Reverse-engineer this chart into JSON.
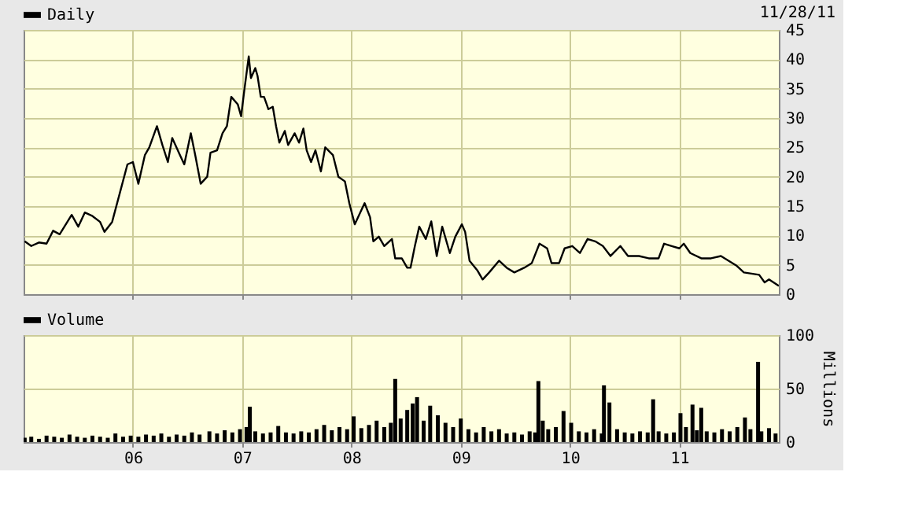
{
  "chart_data": [
    {
      "type": "line",
      "legend": "top left",
      "grid": true,
      "tick_labels": "y",
      "annotations": [
        "11/28/11"
      ],
      "xlim": [
        2005.0,
        2011.91
      ],
      "ylim": [
        0,
        45
      ],
      "yticks": [
        0,
        5,
        10,
        15,
        20,
        25,
        30,
        35,
        40,
        45
      ],
      "xticks": [
        {
          "value": 2006,
          "label": null
        },
        {
          "value": 2007,
          "label": null
        },
        {
          "value": 2008,
          "label": null
        },
        {
          "value": 2009,
          "label": null
        },
        {
          "value": 2010,
          "label": null
        },
        {
          "value": 2011,
          "label": null
        }
      ],
      "series": [
        {
          "name": "Daily",
          "color": "#000000",
          "x": [
            2005.01,
            2005.07,
            2005.14,
            2005.21,
            2005.27,
            2005.33,
            2005.44,
            2005.5,
            2005.56,
            2005.63,
            2005.7,
            2005.74,
            2005.81,
            2005.88,
            2005.95,
            2006.0,
            2006.05,
            2006.11,
            2006.15,
            2006.22,
            2006.27,
            2006.32,
            2006.36,
            2006.43,
            2006.47,
            2006.53,
            2006.57,
            2006.62,
            2006.68,
            2006.71,
            2006.77,
            2006.82,
            2006.86,
            2006.9,
            2006.96,
            2006.99,
            2007.02,
            2007.06,
            2007.08,
            2007.12,
            2007.14,
            2007.17,
            2007.2,
            2007.24,
            2007.28,
            2007.31,
            2007.34,
            2007.39,
            2007.42,
            2007.48,
            2007.52,
            2007.56,
            2007.59,
            2007.63,
            2007.67,
            2007.72,
            2007.76,
            2007.83,
            2007.88,
            2007.94,
            2007.98,
            2008.03,
            2008.09,
            2008.12,
            2008.17,
            2008.2,
            2008.25,
            2008.3,
            2008.37,
            2008.4,
            2008.46,
            2008.51,
            2008.54,
            2008.58,
            2008.62,
            2008.68,
            2008.73,
            2008.78,
            2008.83,
            2008.9,
            2008.95,
            2009.01,
            2009.04,
            2009.08,
            2009.15,
            2009.2,
            2009.26,
            2009.35,
            2009.42,
            2009.49,
            2009.58,
            2009.65,
            2009.72,
            2009.79,
            2009.83,
            2009.9,
            2009.95,
            2010.02,
            2010.09,
            2010.16,
            2010.23,
            2010.3,
            2010.37,
            2010.46,
            2010.53,
            2010.63,
            2010.72,
            2010.81,
            2010.86,
            2010.93,
            2011.0,
            2011.04,
            2011.1,
            2011.2,
            2011.29,
            2011.38,
            2011.45,
            2011.52,
            2011.59,
            2011.73,
            2011.78,
            2011.82,
            2011.91
          ],
          "values": [
            9.0,
            8.2,
            8.8,
            8.6,
            10.8,
            10.2,
            13.5,
            11.5,
            13.9,
            13.3,
            12.3,
            10.6,
            12.3,
            17.2,
            22.1,
            22.5,
            18.8,
            23.7,
            25.0,
            28.6,
            25.4,
            22.5,
            26.6,
            23.7,
            22.1,
            27.4,
            23.7,
            18.8,
            20.0,
            24.1,
            24.5,
            27.4,
            28.6,
            33.6,
            32.3,
            30.3,
            34.8,
            40.5,
            36.8,
            38.5,
            37.2,
            33.6,
            33.6,
            31.5,
            31.9,
            28.6,
            25.8,
            27.8,
            25.4,
            27.4,
            25.8,
            28.2,
            24.5,
            22.5,
            24.5,
            20.9,
            25.0,
            23.7,
            20.0,
            19.2,
            15.5,
            11.9,
            14.3,
            15.5,
            13.1,
            9.0,
            9.8,
            8.2,
            9.4,
            6.1,
            6.1,
            4.5,
            4.5,
            8.2,
            11.5,
            9.4,
            12.4,
            6.5,
            11.5,
            7.0,
            9.8,
            11.9,
            10.6,
            5.7,
            4.1,
            2.5,
            3.7,
            5.7,
            4.5,
            3.7,
            4.5,
            5.3,
            8.6,
            7.8,
            5.3,
            5.3,
            7.8,
            8.2,
            7.0,
            9.4,
            9.0,
            8.2,
            6.5,
            8.2,
            6.5,
            6.5,
            6.1,
            6.1,
            8.6,
            8.2,
            7.8,
            8.6,
            7.0,
            6.1,
            6.1,
            6.5,
            5.7,
            4.9,
            3.7,
            3.3,
            2.0,
            2.5,
            1.4
          ]
        }
      ]
    },
    {
      "type": "bar",
      "legend": "top left",
      "grid": true,
      "ylabel": "Millions",
      "xlim": [
        2005.0,
        2011.91
      ],
      "ylim": [
        0,
        100
      ],
      "yticks": [
        0,
        50,
        100
      ],
      "xticks": [
        {
          "value": 2006,
          "label": "06"
        },
        {
          "value": 2007,
          "label": "07"
        },
        {
          "value": 2008,
          "label": "08"
        },
        {
          "value": 2009,
          "label": "09"
        },
        {
          "value": 2010,
          "label": "10"
        },
        {
          "value": 2011,
          "label": "11"
        }
      ],
      "series": [
        {
          "name": "Volume",
          "color": "#000000",
          "x": [
            2005.01,
            2005.07,
            2005.14,
            2005.21,
            2005.28,
            2005.35,
            2005.42,
            2005.49,
            2005.56,
            2005.63,
            2005.7,
            2005.77,
            2005.84,
            2005.91,
            2005.98,
            2006.05,
            2006.12,
            2006.19,
            2006.26,
            2006.33,
            2006.4,
            2006.47,
            2006.54,
            2006.61,
            2006.7,
            2006.77,
            2006.84,
            2006.91,
            2006.98,
            2007.04,
            2007.07,
            2007.12,
            2007.19,
            2007.26,
            2007.33,
            2007.4,
            2007.47,
            2007.54,
            2007.61,
            2007.68,
            2007.75,
            2007.82,
            2007.89,
            2007.96,
            2008.02,
            2008.09,
            2008.16,
            2008.23,
            2008.3,
            2008.36,
            2008.4,
            2008.45,
            2008.51,
            2008.56,
            2008.6,
            2008.66,
            2008.72,
            2008.79,
            2008.86,
            2008.93,
            2009.0,
            2009.07,
            2009.14,
            2009.21,
            2009.28,
            2009.35,
            2009.42,
            2009.49,
            2009.56,
            2009.63,
            2009.68,
            2009.71,
            2009.75,
            2009.8,
            2009.87,
            2009.94,
            2010.01,
            2010.08,
            2010.15,
            2010.22,
            2010.29,
            2010.31,
            2010.36,
            2010.43,
            2010.5,
            2010.57,
            2010.64,
            2010.71,
            2010.76,
            2010.81,
            2010.88,
            2010.95,
            2011.01,
            2011.06,
            2011.12,
            2011.16,
            2011.2,
            2011.25,
            2011.32,
            2011.39,
            2011.46,
            2011.53,
            2011.6,
            2011.65,
            2011.72,
            2011.75,
            2011.82,
            2011.88
          ],
          "values": [
            4,
            5,
            3,
            6,
            5,
            4,
            7,
            5,
            4,
            6,
            5,
            4,
            8,
            5,
            6,
            5,
            7,
            6,
            8,
            5,
            7,
            6,
            9,
            7,
            10,
            8,
            11,
            9,
            12,
            14,
            33,
            10,
            8,
            9,
            15,
            9,
            8,
            10,
            9,
            12,
            16,
            11,
            14,
            12,
            24,
            13,
            16,
            20,
            14,
            18,
            59,
            22,
            30,
            36,
            42,
            20,
            34,
            25,
            18,
            14,
            22,
            12,
            9,
            14,
            10,
            12,
            8,
            9,
            7,
            10,
            9,
            57,
            20,
            12,
            14,
            29,
            18,
            10,
            9,
            12,
            8,
            53,
            37,
            12,
            9,
            8,
            10,
            9,
            40,
            10,
            8,
            9,
            27,
            14,
            35,
            11,
            32,
            10,
            9,
            12,
            10,
            14,
            23,
            12,
            75,
            10,
            13,
            8
          ]
        }
      ]
    }
  ]
}
